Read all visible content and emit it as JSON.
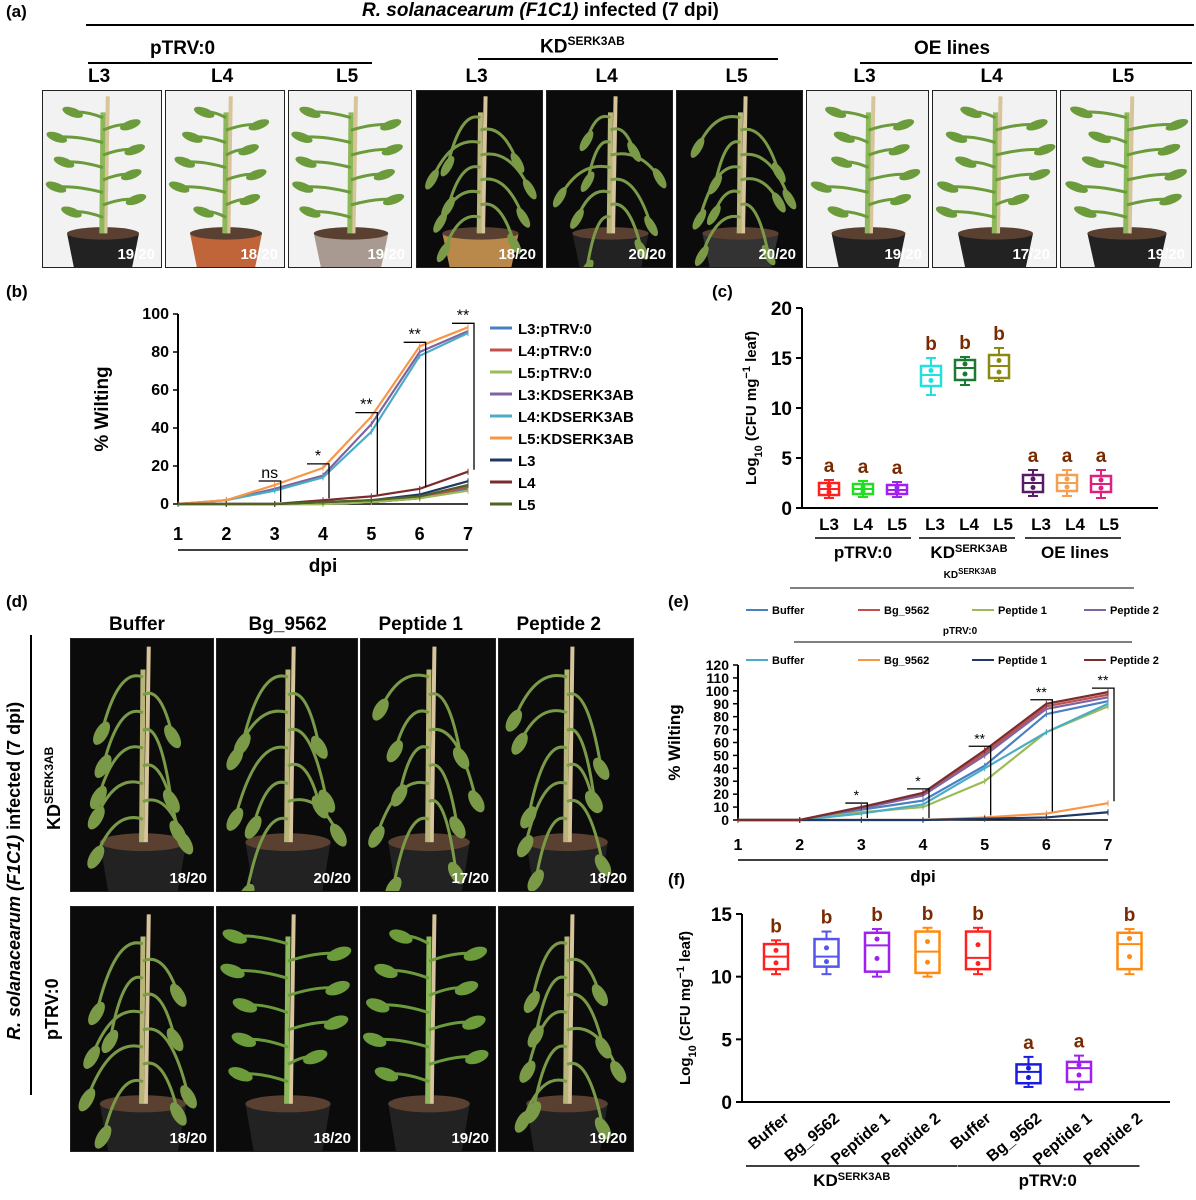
{
  "panel_labels": {
    "a": "(a)",
    "b": "(b)",
    "c": "(c)",
    "d": "(d)",
    "e": "(e)",
    "f": "(f)"
  },
  "panel_a": {
    "title_italic": "R. solanacearum (F1C1)",
    "title_rest": " infected (7 dpi)",
    "groups": [
      {
        "label": "pTRV:0"
      },
      {
        "label_main": "KD",
        "label_sup": "SERK3AB"
      },
      {
        "label": "OE lines"
      }
    ],
    "photo_labels": [
      "L3",
      "L4",
      "L5",
      "L3",
      "L4",
      "L5",
      "L3",
      "L4",
      "L5"
    ],
    "ratios": [
      "19/20",
      "18/20",
      "19/20",
      "18/20",
      "20/20",
      "20/20",
      "19/20",
      "17/20",
      "19/20"
    ]
  },
  "panel_d": {
    "side_label_italic": "R. solanacearum (F1C1)",
    "side_label_rest": " infected (7 dpi)",
    "columns": [
      "Buffer",
      "Bg_9562",
      "Peptide 1",
      "Peptide 2"
    ],
    "row1_main": "KD",
    "row1_sup": "SERK3AB",
    "row2": "pTRV:0",
    "ratios_row1": [
      "18/20",
      "20/20",
      "17/20",
      "18/20"
    ],
    "ratios_row2": [
      "18/20",
      "18/20",
      "19/20",
      "19/20"
    ]
  },
  "chart_data": [
    {
      "panel": "b",
      "type": "line",
      "ylabel": "% Wilting",
      "xlabel": "dpi",
      "x": [
        1,
        2,
        3,
        4,
        5,
        6,
        7
      ],
      "ylim": [
        0,
        100
      ],
      "yticks": [
        0,
        20,
        40,
        60,
        80,
        100
      ],
      "series": [
        {
          "name": "L3:pTRV:0",
          "color": "#4a7fc1",
          "values": [
            0,
            0,
            0,
            0,
            1,
            3,
            8
          ]
        },
        {
          "name": "L4:pTRV:0",
          "color": "#c0504d",
          "values": [
            0,
            0,
            0,
            0,
            1,
            3,
            9
          ]
        },
        {
          "name": "L5:pTRV:0",
          "color": "#9bbb59",
          "values": [
            0,
            0,
            0,
            0,
            1,
            3,
            7
          ]
        },
        {
          "name": "L3:KDSERK3AB",
          "color": "#8064a2",
          "values": [
            0,
            2,
            8,
            15,
            42,
            80,
            91
          ]
        },
        {
          "name": "L4:KDSERK3AB",
          "color": "#4bacc6",
          "values": [
            0,
            2,
            7,
            14,
            38,
            78,
            90
          ]
        },
        {
          "name": "L5:KDSERK3AB",
          "color": "#f79646",
          "values": [
            0,
            2,
            10,
            19,
            46,
            83,
            93
          ]
        },
        {
          "name": "L3",
          "color": "#1f3864",
          "values": [
            0,
            0,
            0,
            1,
            2,
            5,
            12
          ]
        },
        {
          "name": "L4",
          "color": "#7b2c2c",
          "values": [
            0,
            0,
            0,
            2,
            4,
            8,
            17
          ]
        },
        {
          "name": "L5",
          "color": "#4f6228",
          "values": [
            0,
            0,
            0,
            1,
            2,
            4,
            10
          ]
        }
      ],
      "annotations": [
        "ns",
        "*",
        "**",
        "**",
        "**"
      ]
    },
    {
      "panel": "c",
      "type": "box",
      "ylabel": "Log10 (CFU mg-1 leaf)",
      "ylim": [
        0,
        20
      ],
      "yticks": [
        0,
        5,
        10,
        15,
        20
      ],
      "categories": [
        "L3",
        "L4",
        "L5",
        "L3",
        "L4",
        "L5",
        "L3",
        "L4",
        "L5"
      ],
      "groups": [
        "pTRV:0",
        "KDSERK3AB",
        "OE lines"
      ],
      "boxes": [
        {
          "color": "#ff2020",
          "min": 1,
          "q1": 1.3,
          "median": 1.9,
          "q3": 2.5,
          "max": 2.8,
          "letter": "a"
        },
        {
          "color": "#22dd22",
          "min": 1.1,
          "q1": 1.4,
          "median": 1.9,
          "q3": 2.4,
          "max": 2.7,
          "letter": "a"
        },
        {
          "color": "#a020f0",
          "min": 1.1,
          "q1": 1.4,
          "median": 1.8,
          "q3": 2.3,
          "max": 2.6,
          "letter": "a"
        },
        {
          "color": "#22e0e0",
          "min": 11.3,
          "q1": 12.2,
          "median": 13.3,
          "q3": 14.2,
          "max": 15,
          "letter": "b"
        },
        {
          "color": "#1a7a30",
          "min": 12.3,
          "q1": 12.8,
          "median": 14,
          "q3": 14.8,
          "max": 15.1,
          "letter": "b"
        },
        {
          "color": "#8a8a10",
          "min": 12.7,
          "q1": 13,
          "median": 14.2,
          "q3": 15.3,
          "max": 16,
          "letter": "b"
        },
        {
          "color": "#5a1a6a",
          "min": 1.2,
          "q1": 1.6,
          "median": 2.5,
          "q3": 3.3,
          "max": 3.8,
          "letter": "a"
        },
        {
          "color": "#f5a050",
          "min": 1.2,
          "q1": 1.7,
          "median": 2.5,
          "q3": 3.3,
          "max": 3.8,
          "letter": "a"
        },
        {
          "color": "#e02080",
          "min": 1,
          "q1": 1.6,
          "median": 2.4,
          "q3": 3.2,
          "max": 3.8,
          "letter": "a"
        }
      ]
    },
    {
      "panel": "e",
      "type": "line",
      "ylabel": "% Wilting",
      "xlabel": "dpi",
      "x": [
        1,
        2,
        3,
        4,
        5,
        6,
        7
      ],
      "ylim": [
        0,
        120
      ],
      "yticks": [
        0,
        10,
        20,
        30,
        40,
        50,
        60,
        70,
        80,
        90,
        100,
        110,
        120
      ],
      "legend_group1_main": "KD",
      "legend_group1_sup": "SERK3AB",
      "legend_group2": "pTRV:0",
      "series": [
        {
          "name": "Buffer",
          "group": "KDSERK3AB",
          "color": "#4a7fc1",
          "values": [
            0,
            0,
            8,
            15,
            42,
            82,
            92
          ]
        },
        {
          "name": "Bg_9562",
          "group": "KDSERK3AB",
          "color": "#c0504d",
          "values": [
            0,
            0,
            10,
            20,
            52,
            88,
            97
          ]
        },
        {
          "name": "Peptide 1",
          "group": "KDSERK3AB",
          "color": "#9bbb59",
          "values": [
            0,
            0,
            6,
            10,
            30,
            68,
            88
          ]
        },
        {
          "name": "Peptide 2",
          "group": "KDSERK3AB",
          "color": "#8064a2",
          "values": [
            0,
            0,
            9,
            19,
            50,
            86,
            95
          ]
        },
        {
          "name": "Buffer",
          "group": "pTRV:0",
          "color": "#4bacc6",
          "values": [
            0,
            0,
            5,
            12,
            40,
            68,
            90
          ]
        },
        {
          "name": "Bg_9562",
          "group": "pTRV:0",
          "color": "#f79646",
          "values": [
            0,
            0,
            0,
            0,
            2,
            5,
            13
          ]
        },
        {
          "name": "Peptide 1",
          "group": "pTRV:0",
          "color": "#1f3864",
          "values": [
            0,
            0,
            0,
            0,
            1,
            2,
            6
          ]
        },
        {
          "name": "Peptide 2",
          "group": "pTRV:0",
          "color": "#7b2c2c",
          "values": [
            0,
            0,
            10,
            21,
            54,
            90,
            99
          ]
        }
      ],
      "annotations": [
        "*",
        "*",
        "**",
        "**",
        "**"
      ]
    },
    {
      "panel": "f",
      "type": "box",
      "ylabel": "Log10 (CFU mg-1 leaf)",
      "ylim": [
        0,
        15
      ],
      "yticks": [
        0,
        5,
        10,
        15
      ],
      "categories": [
        "Buffer",
        "Bg_9562",
        "Peptide 1",
        "Peptide 2",
        "Buffer",
        "Bg_9562",
        "Peptide 1",
        "Peptide 2"
      ],
      "groups": [
        "KDSERK3AB",
        "pTRV:0"
      ],
      "boxes": [
        {
          "color": "#ff2020",
          "min": 10.2,
          "q1": 10.6,
          "median": 11.6,
          "q3": 12.6,
          "max": 12.9,
          "letter": "b"
        },
        {
          "color": "#5555ee",
          "min": 10.2,
          "q1": 10.8,
          "median": 11.6,
          "q3": 13,
          "max": 13.6,
          "letter": "b"
        },
        {
          "color": "#a020f0",
          "min": 10,
          "q1": 10.4,
          "median": 12.5,
          "q3": 13.5,
          "max": 13.8,
          "letter": "b"
        },
        {
          "color": "#ff8a10",
          "min": 10,
          "q1": 10.3,
          "median": 12,
          "q3": 13.6,
          "max": 13.9,
          "letter": "b"
        },
        {
          "color": "#ff2020",
          "min": 10.2,
          "q1": 10.6,
          "median": 11.5,
          "q3": 13.6,
          "max": 13.9,
          "letter": "b"
        },
        {
          "color": "#1a1ae0",
          "min": 1.2,
          "q1": 1.5,
          "median": 2.4,
          "q3": 3,
          "max": 3.6,
          "letter": "a"
        },
        {
          "color": "#a020f0",
          "min": 1,
          "q1": 1.6,
          "median": 2.7,
          "q3": 3.2,
          "max": 3.7,
          "letter": "a"
        },
        {
          "color": "#ff8a10",
          "min": 10.2,
          "q1": 10.6,
          "median": 12.6,
          "q3": 13.5,
          "max": 13.8,
          "letter": "b"
        }
      ]
    }
  ],
  "colors": {
    "photo_bg_light": "#f2f2f2",
    "photo_bg_dark": "#0b0b0b",
    "plant_green": "#6b9b3a"
  }
}
